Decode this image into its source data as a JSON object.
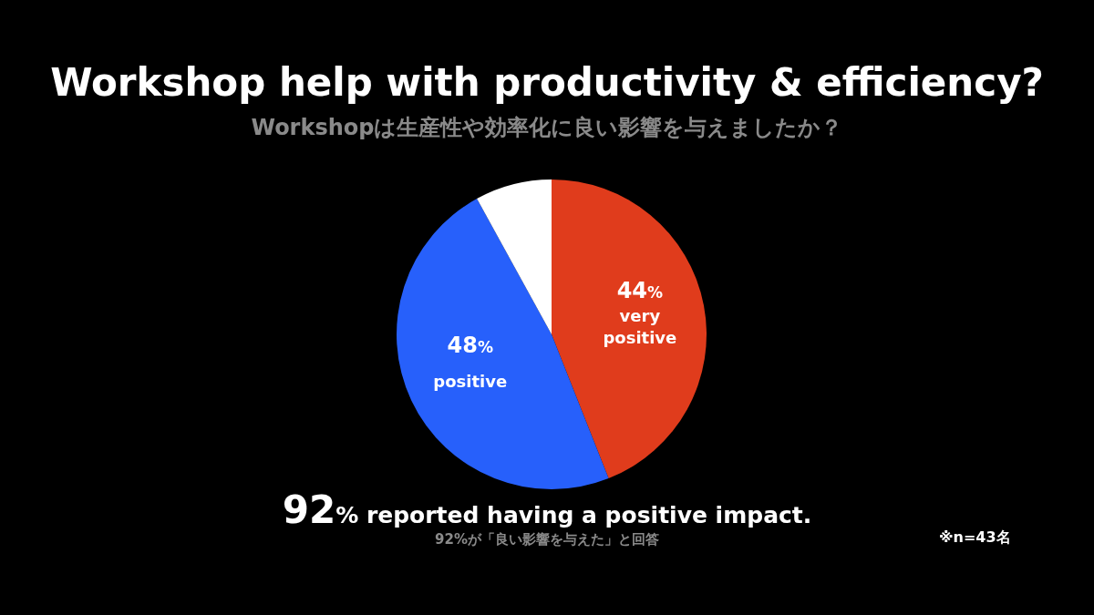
{
  "chart_data": {
    "type": "pie",
    "title": "Workshop help with productivity & efficiency?",
    "subtitle": "Workshopは生産性や効率化に良い影響を与えましたか？",
    "categories": [
      "very positive",
      "positive",
      null
    ],
    "values": [
      44,
      48,
      8
    ],
    "colors": [
      "#e03c1c",
      "#2760fb",
      "#ffffff"
    ],
    "value_labels": [
      "44%",
      "48%",
      null
    ],
    "legend": false,
    "annotations": [
      "92% reported having a positive impact.",
      "92%が「良い影響を与えた」と回答",
      "※n=43名"
    ]
  }
}
